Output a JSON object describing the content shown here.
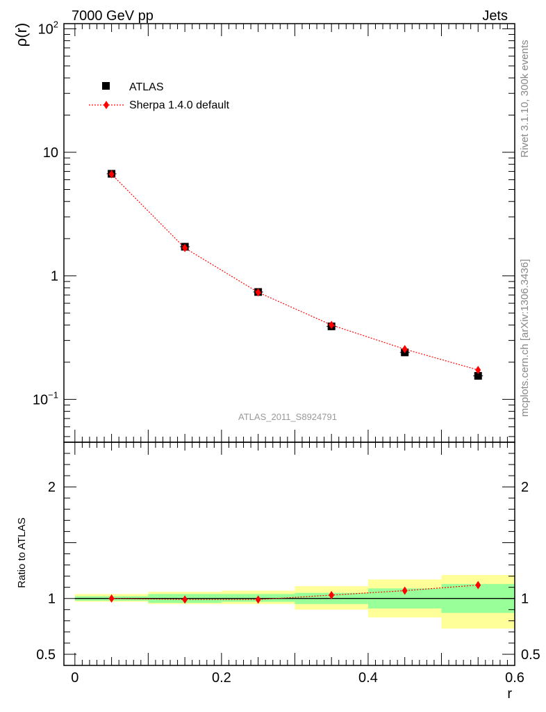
{
  "chart_data": [
    {
      "type": "scatter",
      "panel": "main",
      "header_left": "7000 GeV pp",
      "header_right": "Jets",
      "ylabel": "ρ(r)",
      "yscale": "log",
      "ylim": [
        0.045,
        110
      ],
      "xlim": [
        -0.015,
        0.6
      ],
      "y_ticks": [
        {
          "value": 100,
          "label": "10",
          "sup": "2"
        },
        {
          "value": 10,
          "label": "10",
          "sup": ""
        },
        {
          "value": 1,
          "label": "1",
          "sup": ""
        },
        {
          "value": 0.1,
          "label": "10",
          "sup": "−1"
        }
      ],
      "watermark": "ATLAS_2011_S8924791",
      "side_label_top": "Rivet 3.1.10,  300k events",
      "side_label_bottom": "mcplots.cern.ch [arXiv:1306.3436]",
      "legend": [
        {
          "name": "ATLAS",
          "marker": "square"
        },
        {
          "name": "Sherpa 1.4.0 default",
          "marker": "diamond"
        }
      ],
      "legend_position": "top-left",
      "x": [
        0.05,
        0.15,
        0.25,
        0.35,
        0.45,
        0.55
      ],
      "series": [
        {
          "name": "ATLAS",
          "values": [
            6.7,
            1.72,
            0.74,
            0.39,
            0.24,
            0.155
          ],
          "color": "#000000"
        },
        {
          "name": "Sherpa 1.4.0 default",
          "values": [
            6.65,
            1.68,
            0.735,
            0.4,
            0.255,
            0.173
          ],
          "color": "#ff0000"
        }
      ]
    },
    {
      "type": "scatter",
      "panel": "ratio",
      "ylabel": "Ratio to ATLAS",
      "xlabel": "r",
      "ylim": [
        0.4,
        2.4
      ],
      "xlim": [
        -0.015,
        0.6
      ],
      "x_ticks": [
        {
          "value": 0,
          "label": "0"
        },
        {
          "value": 0.2,
          "label": "0.2"
        },
        {
          "value": 0.4,
          "label": "0.4"
        },
        {
          "value": 0.6,
          "label": "0.6"
        }
      ],
      "y_ticks": [
        {
          "value": 2,
          "label": "2"
        },
        {
          "value": 1,
          "label": "1"
        },
        {
          "value": 0.5,
          "label": "0.5"
        }
      ],
      "bins": [
        0.0,
        0.1,
        0.2,
        0.3,
        0.4,
        0.5,
        0.6
      ],
      "stat_band_low": [
        0.98,
        0.96,
        0.97,
        0.95,
        0.91,
        0.87
      ],
      "stat_band_high": [
        1.02,
        1.04,
        1.04,
        1.05,
        1.09,
        1.13
      ],
      "total_band_low": [
        0.97,
        0.95,
        0.95,
        0.9,
        0.83,
        0.73
      ],
      "total_band_high": [
        1.04,
        1.06,
        1.07,
        1.11,
        1.17,
        1.21
      ],
      "x": [
        0.05,
        0.15,
        0.25,
        0.35,
        0.45,
        0.55
      ],
      "series": [
        {
          "name": "Sherpa 1.4.0 default / ATLAS",
          "values": [
            1.0,
            0.99,
            0.99,
            1.03,
            1.07,
            1.12
          ],
          "color": "#ff0000"
        }
      ]
    }
  ]
}
